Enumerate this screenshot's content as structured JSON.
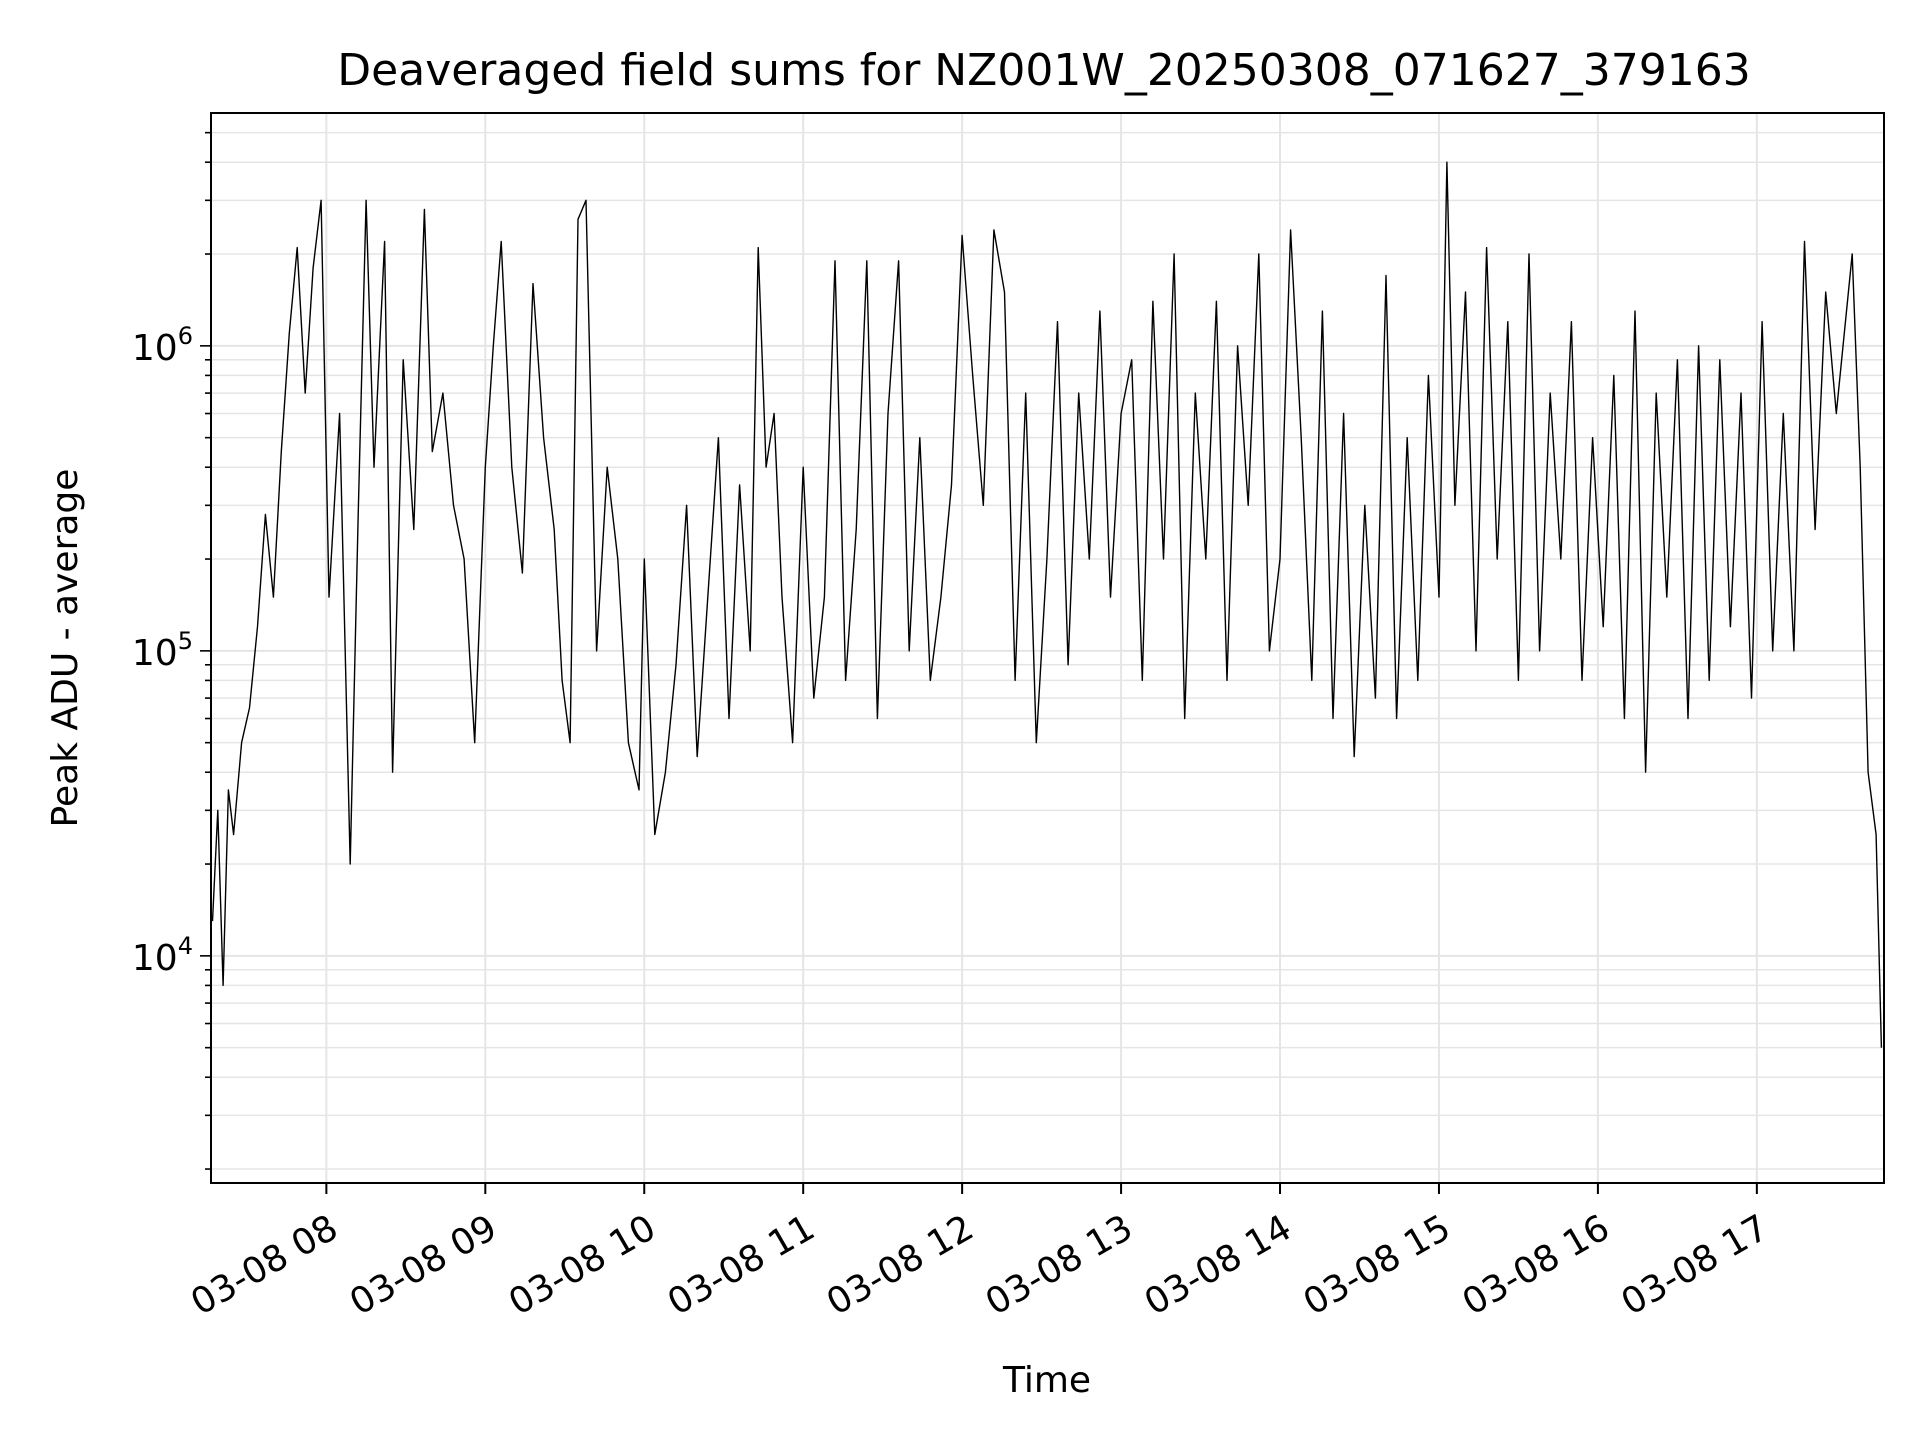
{
  "chart_data": {
    "type": "line",
    "title": "Deaveraged field sums for NZ001W_20250308_071627_379163",
    "xlabel": "Time",
    "ylabel": "Peak ADU - average",
    "xlim": [
      "2025-03-08 07:16:27",
      "2025-03-08 17:48:00"
    ],
    "ylim": [
      1800,
      5800000
    ],
    "yscale": "log",
    "grid": true,
    "line_color": "#000000",
    "grid_color": "#e5e5e5",
    "x_ticks": [
      {
        "value": "2025-03-08 08:00",
        "label": "03-08 08"
      },
      {
        "value": "2025-03-08 09:00",
        "label": "03-08 09"
      },
      {
        "value": "2025-03-08 10:00",
        "label": "03-08 10"
      },
      {
        "value": "2025-03-08 11:00",
        "label": "03-08 11"
      },
      {
        "value": "2025-03-08 12:00",
        "label": "03-08 12"
      },
      {
        "value": "2025-03-08 13:00",
        "label": "03-08 13"
      },
      {
        "value": "2025-03-08 14:00",
        "label": "03-08 14"
      },
      {
        "value": "2025-03-08 15:00",
        "label": "03-08 15"
      },
      {
        "value": "2025-03-08 16:00",
        "label": "03-08 16"
      },
      {
        "value": "2025-03-08 17:00",
        "label": "03-08 17"
      }
    ],
    "y_ticks": [
      {
        "value": 10000,
        "base": "10",
        "exponent": "4"
      },
      {
        "value": 100000,
        "base": "10",
        "exponent": "5"
      },
      {
        "value": 1000000,
        "base": "10",
        "exponent": "6"
      }
    ],
    "series": [
      {
        "x": [
          "2025-03-08 07:17",
          "2025-03-08 07:19",
          "2025-03-08 07:21",
          "2025-03-08 07:23",
          "2025-03-08 07:25",
          "2025-03-08 07:28",
          "2025-03-08 07:31",
          "2025-03-08 07:34",
          "2025-03-08 07:37",
          "2025-03-08 07:40",
          "2025-03-08 07:43",
          "2025-03-08 07:46",
          "2025-03-08 07:49",
          "2025-03-08 07:52",
          "2025-03-08 07:55",
          "2025-03-08 07:58",
          "2025-03-08 08:01",
          "2025-03-08 08:05",
          "2025-03-08 08:09",
          "2025-03-08 08:12",
          "2025-03-08 08:15",
          "2025-03-08 08:18",
          "2025-03-08 08:22",
          "2025-03-08 08:25",
          "2025-03-08 08:29",
          "2025-03-08 08:33",
          "2025-03-08 08:37",
          "2025-03-08 08:40",
          "2025-03-08 08:44",
          "2025-03-08 08:48",
          "2025-03-08 08:52",
          "2025-03-08 08:56",
          "2025-03-08 09:00",
          "2025-03-08 09:03",
          "2025-03-08 09:06",
          "2025-03-08 09:10",
          "2025-03-08 09:14",
          "2025-03-08 09:18",
          "2025-03-08 09:22",
          "2025-03-08 09:26",
          "2025-03-08 09:29",
          "2025-03-08 09:32",
          "2025-03-08 09:35",
          "2025-03-08 09:38",
          "2025-03-08 09:42",
          "2025-03-08 09:46",
          "2025-03-08 09:50",
          "2025-03-08 09:54",
          "2025-03-08 09:58",
          "2025-03-08 10:00",
          "2025-03-08 10:04",
          "2025-03-08 10:08",
          "2025-03-08 10:12",
          "2025-03-08 10:16",
          "2025-03-08 10:20",
          "2025-03-08 10:24",
          "2025-03-08 10:28",
          "2025-03-08 10:32",
          "2025-03-08 10:36",
          "2025-03-08 10:40",
          "2025-03-08 10:43",
          "2025-03-08 10:46",
          "2025-03-08 10:49",
          "2025-03-08 10:52",
          "2025-03-08 10:56",
          "2025-03-08 11:00",
          "2025-03-08 11:04",
          "2025-03-08 11:08",
          "2025-03-08 11:12",
          "2025-03-08 11:16",
          "2025-03-08 11:20",
          "2025-03-08 11:24",
          "2025-03-08 11:28",
          "2025-03-08 11:32",
          "2025-03-08 11:36",
          "2025-03-08 11:40",
          "2025-03-08 11:44",
          "2025-03-08 11:48",
          "2025-03-08 11:52",
          "2025-03-08 11:56",
          "2025-03-08 12:00",
          "2025-03-08 12:04",
          "2025-03-08 12:08",
          "2025-03-08 12:12",
          "2025-03-08 12:16",
          "2025-03-08 12:20",
          "2025-03-08 12:24",
          "2025-03-08 12:28",
          "2025-03-08 12:32",
          "2025-03-08 12:36",
          "2025-03-08 12:40",
          "2025-03-08 12:44",
          "2025-03-08 12:48",
          "2025-03-08 12:52",
          "2025-03-08 12:56",
          "2025-03-08 13:00",
          "2025-03-08 13:04",
          "2025-03-08 13:08",
          "2025-03-08 13:12",
          "2025-03-08 13:16",
          "2025-03-08 13:20",
          "2025-03-08 13:24",
          "2025-03-08 13:28",
          "2025-03-08 13:32",
          "2025-03-08 13:36",
          "2025-03-08 13:40",
          "2025-03-08 13:44",
          "2025-03-08 13:48",
          "2025-03-08 13:52",
          "2025-03-08 13:56",
          "2025-03-08 14:00",
          "2025-03-08 14:04",
          "2025-03-08 14:08",
          "2025-03-08 14:12",
          "2025-03-08 14:16",
          "2025-03-08 14:20",
          "2025-03-08 14:24",
          "2025-03-08 14:28",
          "2025-03-08 14:32",
          "2025-03-08 14:36",
          "2025-03-08 14:40",
          "2025-03-08 14:44",
          "2025-03-08 14:48",
          "2025-03-08 14:52",
          "2025-03-08 14:56",
          "2025-03-08 15:00",
          "2025-03-08 15:03",
          "2025-03-08 15:06",
          "2025-03-08 15:10",
          "2025-03-08 15:14",
          "2025-03-08 15:18",
          "2025-03-08 15:22",
          "2025-03-08 15:26",
          "2025-03-08 15:30",
          "2025-03-08 15:34",
          "2025-03-08 15:38",
          "2025-03-08 15:42",
          "2025-03-08 15:46",
          "2025-03-08 15:50",
          "2025-03-08 15:54",
          "2025-03-08 15:58",
          "2025-03-08 16:02",
          "2025-03-08 16:06",
          "2025-03-08 16:10",
          "2025-03-08 16:14",
          "2025-03-08 16:18",
          "2025-03-08 16:22",
          "2025-03-08 16:26",
          "2025-03-08 16:30",
          "2025-03-08 16:34",
          "2025-03-08 16:38",
          "2025-03-08 16:42",
          "2025-03-08 16:46",
          "2025-03-08 16:50",
          "2025-03-08 16:54",
          "2025-03-08 16:58",
          "2025-03-08 17:02",
          "2025-03-08 17:06",
          "2025-03-08 17:10",
          "2025-03-08 17:14",
          "2025-03-08 17:18",
          "2025-03-08 17:22",
          "2025-03-08 17:26",
          "2025-03-08 17:30",
          "2025-03-08 17:33",
          "2025-03-08 17:36",
          "2025-03-08 17:39",
          "2025-03-08 17:42",
          "2025-03-08 17:45",
          "2025-03-08 17:47"
        ],
        "y": [
          13000,
          30000,
          8000,
          35000,
          25000,
          50000,
          65000,
          120000,
          280000,
          150000,
          450000,
          1100000,
          2100000,
          700000,
          1800000,
          3000000,
          150000,
          600000,
          20000,
          280000,
          3000000,
          400000,
          2200000,
          40000,
          900000,
          250000,
          2800000,
          450000,
          700000,
          300000,
          200000,
          50000,
          400000,
          1000000,
          2200000,
          400000,
          180000,
          1600000,
          500000,
          250000,
          80000,
          50000,
          2600000,
          3000000,
          100000,
          400000,
          200000,
          50000,
          35000,
          200000,
          25000,
          40000,
          90000,
          300000,
          45000,
          150000,
          500000,
          60000,
          350000,
          100000,
          2100000,
          400000,
          600000,
          150000,
          50000,
          400000,
          70000,
          150000,
          1900000,
          80000,
          250000,
          1900000,
          60000,
          600000,
          1900000,
          100000,
          500000,
          80000,
          150000,
          350000,
          2300000,
          800000,
          300000,
          2400000,
          1500000,
          80000,
          700000,
          50000,
          200000,
          1200000,
          90000,
          700000,
          200000,
          1300000,
          150000,
          600000,
          900000,
          80000,
          1400000,
          200000,
          2000000,
          60000,
          700000,
          200000,
          1400000,
          80000,
          1000000,
          300000,
          2000000,
          100000,
          200000,
          2400000,
          500000,
          80000,
          1300000,
          60000,
          600000,
          45000,
          300000,
          70000,
          1700000,
          60000,
          500000,
          80000,
          800000,
          150000,
          4000000,
          300000,
          1500000,
          100000,
          2100000,
          200000,
          1200000,
          80000,
          2000000,
          100000,
          700000,
          200000,
          1200000,
          80000,
          500000,
          120000,
          800000,
          60000,
          1300000,
          40000,
          700000,
          150000,
          900000,
          60000,
          1000000,
          80000,
          900000,
          120000,
          700000,
          70000,
          1200000,
          100000,
          600000,
          100000,
          2200000,
          250000,
          1500000,
          600000,
          1100000,
          2000000,
          400000,
          40000,
          25000,
          5000
        ]
      }
    ]
  }
}
